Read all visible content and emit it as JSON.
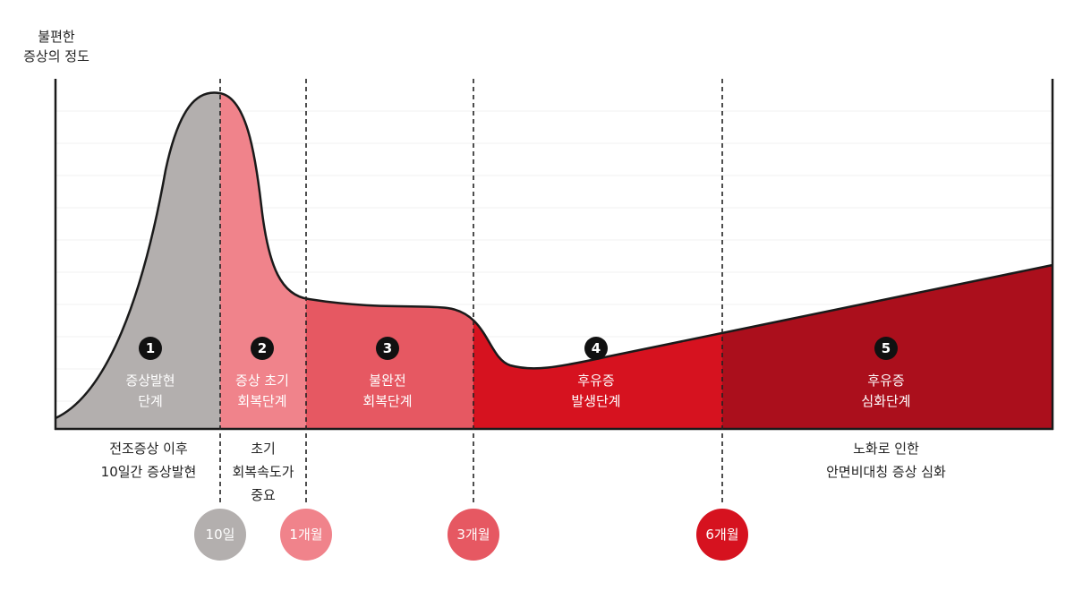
{
  "y_axis": {
    "line1": "불편한",
    "line2": "증상의 정도"
  },
  "phases": [
    {
      "number": "1",
      "line1": "증상발현",
      "line2": "단계",
      "color": "#b3afae"
    },
    {
      "number": "2",
      "line1": "증상 초기",
      "line2": "회복단계",
      "color": "#f0838b"
    },
    {
      "number": "3",
      "line1": "불완전",
      "line2": "회복단계",
      "color": "#e65862"
    },
    {
      "number": "4",
      "line1": "후유증",
      "line2": "발생단계",
      "color": "#d6121f"
    },
    {
      "number": "5",
      "line1": "후유증",
      "line2": "심화단계",
      "color": "#ab0f1c"
    }
  ],
  "notes": [
    {
      "lines": [
        "전조증상 이후",
        "10일간 증상발현"
      ]
    },
    {
      "lines": [
        "초기",
        "회복속도가",
        "중요"
      ]
    },
    {
      "lines": [
        "노화로 인한",
        "안면비대칭 증상 심화"
      ]
    }
  ],
  "milestones": [
    {
      "label": "10일",
      "color": "#b3afae"
    },
    {
      "label": "1개월",
      "color": "#f0838b"
    },
    {
      "label": "3개월",
      "color": "#e65862"
    },
    {
      "label": "6개월",
      "color": "#d6121f"
    }
  ]
}
